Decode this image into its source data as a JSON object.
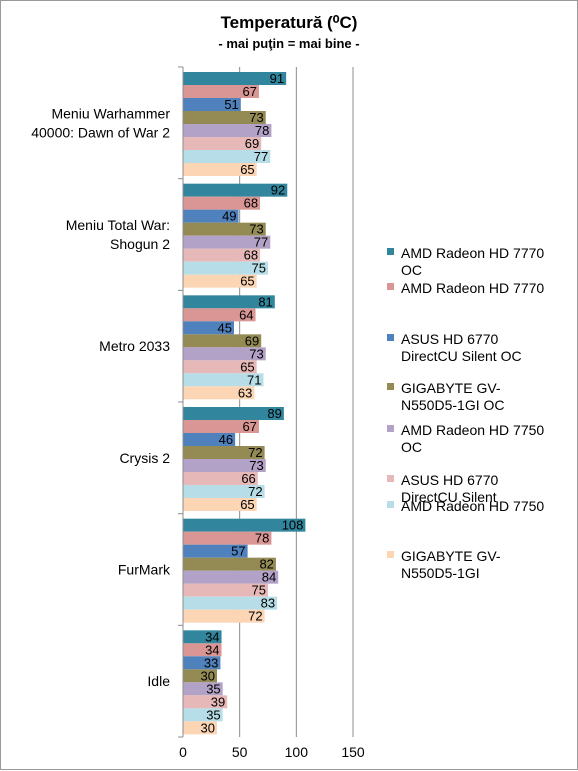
{
  "chart_data": {
    "type": "bar",
    "orientation": "horizontal",
    "title": "Temperatură (⁰C)",
    "subtitle": "- mai puţin = mai bine -",
    "xlim": [
      0,
      150
    ],
    "xticks": [
      0,
      50,
      100,
      150
    ],
    "grid": true,
    "legend_position": "right",
    "categories": [
      [
        "Meniu Warhammer",
        "40000: Dawn of War 2"
      ],
      [
        "Meniu Total War:",
        "Shogun 2"
      ],
      [
        "Metro 2033"
      ],
      [
        "Crysis 2"
      ],
      [
        "FurMark"
      ],
      [
        "Idle"
      ]
    ],
    "series": [
      {
        "name": [
          "AMD Radeon HD 7770",
          "OC"
        ],
        "color": "#31859c",
        "values": [
          91,
          92,
          81,
          89,
          108,
          34
        ]
      },
      {
        "name": [
          "AMD Radeon HD 7770"
        ],
        "color": "#d99694",
        "values": [
          67,
          68,
          64,
          67,
          78,
          34
        ]
      },
      {
        "name": [
          "ASUS HD 6770",
          "DirectCU Silent OC"
        ],
        "color": "#4f81bd",
        "values": [
          51,
          49,
          45,
          46,
          57,
          33
        ]
      },
      {
        "name": [
          "GIGABYTE GV-",
          "N550D5-1GI OC"
        ],
        "color": "#948a54",
        "values": [
          73,
          73,
          69,
          72,
          82,
          30
        ]
      },
      {
        "name": [
          "AMD Radeon HD 7750",
          "OC"
        ],
        "color": "#b3a2c7",
        "values": [
          78,
          77,
          73,
          73,
          84,
          35
        ]
      },
      {
        "name": [
          "ASUS HD 6770",
          "DirectCU Silent"
        ],
        "color": "#e6b9b8",
        "values": [
          69,
          68,
          65,
          66,
          75,
          39
        ]
      },
      {
        "name": [
          "AMD Radeon HD 7750"
        ],
        "color": "#b7dee8",
        "values": [
          77,
          75,
          71,
          72,
          83,
          35
        ]
      },
      {
        "name": [
          "GIGABYTE GV-",
          "N550D5-1GI"
        ],
        "color": "#fcd5b5",
        "values": [
          65,
          65,
          63,
          65,
          72,
          30
        ]
      }
    ]
  }
}
